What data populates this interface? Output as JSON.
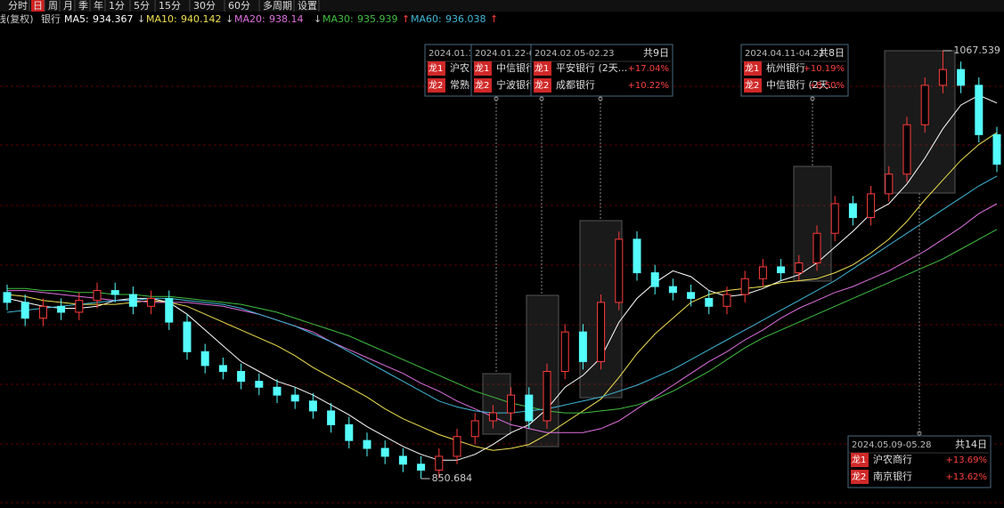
{
  "toolbar": [
    "分时",
    "日",
    "周",
    "月",
    "季",
    "年",
    "1分",
    "5分",
    "15分",
    "30分",
    "60分",
    "多周期",
    "设置"
  ],
  "chart_data": {
    "type": "candlestick",
    "title": "线(复权)",
    "subtitle": "银行",
    "ylim": [
      835.8,
      1080.6
    ],
    "ohlc": [
      [
        945,
        949,
        936,
        940
      ],
      [
        940,
        944,
        928,
        932
      ],
      [
        932,
        942,
        928,
        938
      ],
      [
        938,
        942,
        931,
        935
      ],
      [
        935,
        945,
        931,
        941
      ],
      [
        941,
        950,
        937,
        946
      ],
      [
        946,
        950,
        940,
        944
      ],
      [
        944,
        948,
        934,
        938
      ],
      [
        938,
        946,
        934,
        942
      ],
      [
        942,
        946,
        926,
        930
      ],
      [
        930,
        934,
        911,
        915
      ],
      [
        915,
        919,
        904,
        908
      ],
      [
        908,
        912,
        901,
        905
      ],
      [
        905,
        909,
        896,
        900
      ],
      [
        900,
        904,
        893,
        897
      ],
      [
        897,
        901,
        889,
        893
      ],
      [
        893,
        897,
        886,
        890
      ],
      [
        890,
        894,
        881,
        885
      ],
      [
        885,
        889,
        874,
        878
      ],
      [
        878,
        882,
        866,
        870
      ],
      [
        870,
        874,
        862,
        866
      ],
      [
        866,
        870,
        858,
        862
      ],
      [
        862,
        866,
        854,
        858
      ],
      [
        858,
        862,
        850.684,
        855
      ],
      [
        855,
        866,
        851,
        862
      ],
      [
        862,
        876,
        858,
        872
      ],
      [
        872,
        884,
        868,
        880
      ],
      [
        880,
        888,
        876,
        884
      ],
      [
        884,
        897,
        880,
        893
      ],
      [
        893,
        897,
        876,
        880
      ],
      [
        880,
        909,
        876,
        905
      ],
      [
        905,
        929,
        901,
        925
      ],
      [
        925,
        929,
        906,
        910
      ],
      [
        910,
        944,
        906,
        940
      ],
      [
        940,
        976,
        936,
        972
      ],
      [
        972,
        976,
        951,
        955
      ],
      [
        955,
        959,
        944,
        948
      ],
      [
        948,
        952,
        941,
        945
      ],
      [
        945,
        949,
        938,
        942
      ],
      [
        942,
        946,
        934,
        938
      ],
      [
        938,
        948,
        934,
        944
      ],
      [
        944,
        956,
        940,
        952
      ],
      [
        952,
        962,
        948,
        958
      ],
      [
        958,
        962,
        951,
        955
      ],
      [
        955,
        964,
        951,
        960
      ],
      [
        960,
        979,
        956,
        975
      ],
      [
        975,
        994,
        971,
        990
      ],
      [
        990,
        994,
        979,
        983
      ],
      [
        983,
        999,
        979,
        995
      ],
      [
        995,
        1009,
        991,
        1005
      ],
      [
        1005,
        1034,
        1001,
        1030
      ],
      [
        1030,
        1054,
        1026,
        1050
      ],
      [
        1050,
        1067.539,
        1046,
        1058
      ],
      [
        1058,
        1062,
        1046,
        1050
      ],
      [
        1050,
        1054,
        1021,
        1025
      ],
      [
        1025,
        1029,
        1006,
        1010
      ]
    ],
    "series": [
      {
        "name": "MA5:",
        "current": 934.367,
        "trend": "↓",
        "color": "#ffffff",
        "values": [
          942,
          940,
          938,
          937,
          937,
          938,
          941,
          942,
          942,
          940,
          934,
          926,
          918,
          910,
          905,
          900,
          897,
          893,
          888,
          883,
          877,
          872,
          867,
          863,
          860,
          860,
          863,
          868,
          874,
          878,
          886,
          897,
          903,
          912,
          930,
          942,
          950,
          956,
          953,
          946,
          943,
          944,
          947,
          951,
          954,
          960,
          968,
          976,
          985,
          990,
          1000,
          1013,
          1028,
          1040,
          1045,
          1041
        ]
      },
      {
        "name": "MA10:",
        "current": 940.142,
        "trend": "↓",
        "color": "#f0e050",
        "values": [
          944,
          943,
          941,
          940,
          939,
          939,
          939,
          940,
          941,
          940,
          938,
          934,
          930,
          926,
          922,
          918,
          913,
          907,
          902,
          897,
          892,
          886,
          881,
          877,
          873,
          870,
          867,
          865,
          866,
          868,
          873,
          879,
          885,
          891,
          902,
          914,
          924,
          932,
          940,
          944,
          946,
          947,
          948,
          950,
          951,
          952,
          955,
          959,
          965,
          972,
          981,
          992,
          1002,
          1012,
          1020,
          1026
        ]
      },
      {
        "name": "MA20:",
        "current": 938.14,
        "trend": "↓",
        "color": "#e070e0",
        "values": [
          946,
          946,
          945,
          944,
          943,
          942,
          941,
          941,
          940,
          940,
          940,
          939,
          938,
          936,
          934,
          931,
          928,
          925,
          920,
          916,
          912,
          908,
          904,
          899,
          895,
          890,
          886,
          882,
          878,
          876,
          874,
          874,
          874,
          876,
          880,
          886,
          892,
          898,
          904,
          910,
          915,
          921,
          926,
          932,
          937,
          941,
          945,
          948,
          952,
          956,
          961,
          966,
          972,
          978,
          985,
          990
        ]
      },
      {
        "name": "MA30:",
        "current": 935.939,
        "trend": "↑",
        "color": "#40c040",
        "values": [
          947,
          947,
          946,
          946,
          945,
          945,
          944,
          944,
          943,
          943,
          942,
          941,
          940,
          939,
          937,
          935,
          932,
          929,
          926,
          923,
          919,
          915,
          911,
          907,
          903,
          899,
          895,
          892,
          889,
          887,
          885,
          884,
          884,
          885,
          886,
          888,
          891,
          895,
          900,
          905,
          911,
          917,
          922,
          926,
          930,
          934,
          938,
          942,
          946,
          950,
          954,
          958,
          962,
          967,
          972,
          977
        ]
      },
      {
        "name": "MA60:",
        "current": 936.038,
        "trend": "↑",
        "color": "#40b8d8",
        "values": [
          935,
          936,
          937,
          938,
          939,
          940,
          941,
          941,
          942,
          942,
          941,
          940,
          939,
          937,
          934,
          931,
          928,
          924,
          920,
          915,
          910,
          905,
          900,
          895,
          890,
          887,
          885,
          884,
          884,
          885,
          886,
          888,
          890,
          892,
          895,
          898,
          902,
          906,
          911,
          916,
          921,
          926,
          931,
          936,
          941,
          946,
          951,
          957,
          963,
          969,
          975,
          981,
          987,
          993,
          999,
          1004
        ]
      }
    ],
    "max_label": 1067.539,
    "min_label": 850.684,
    "annotations": [
      {
        "date": "2024.01.1",
        "rows": [
          {
            "rank": "龙1",
            "name": "沪农"
          },
          {
            "rank": "龙2",
            "name": "常熟"
          }
        ]
      },
      {
        "date": "2024.01.22-0",
        "rows": [
          {
            "rank": "龙1",
            "name": "中信银行"
          },
          {
            "rank": "龙2",
            "name": "宁波银行"
          }
        ]
      },
      {
        "date": "2024.02.05-02.23",
        "days": "共9日",
        "rows": [
          {
            "rank": "龙1",
            "name": "平安银行 (2天...",
            "change": "+17.04%"
          },
          {
            "rank": "龙2",
            "name": "成都银行",
            "change": "+10.22%"
          }
        ]
      },
      {
        "date": "2024.04.11-04.22",
        "days": "共8日",
        "rows": [
          {
            "rank": "龙1",
            "name": "杭州银行",
            "change": "+10.19%"
          },
          {
            "rank": "龙2",
            "name": "中信银行 (2天...",
            "change": "+8.50%"
          }
        ]
      },
      {
        "date": "2024.05.09-05.28",
        "days": "共14日",
        "rows": [
          {
            "rank": "龙1",
            "name": "沪农商行",
            "change": "+13.69%"
          },
          {
            "rank": "龙2",
            "name": "南京银行",
            "change": "+13.62%"
          }
        ]
      }
    ]
  }
}
